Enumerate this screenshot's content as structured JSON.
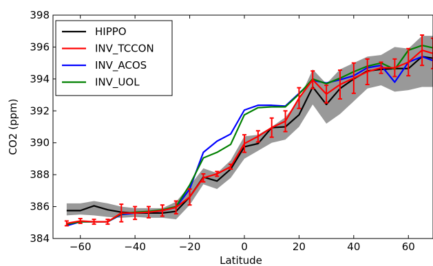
{
  "chart_data": {
    "type": "line",
    "title": "",
    "xlabel": "Latitude",
    "ylabel": "CO2 (ppm)",
    "xlim": [
      -70,
      69
    ],
    "ylim": [
      384,
      398
    ],
    "xticks": [
      -60,
      -40,
      -20,
      0,
      20,
      40,
      60
    ],
    "yticks": [
      384,
      386,
      388,
      390,
      392,
      394,
      396,
      398
    ],
    "grid": false,
    "legend": "top-left",
    "x": [
      -65,
      -60,
      -55,
      -50,
      -45,
      -40,
      -35,
      -30,
      -25,
      -20,
      -15,
      -10,
      -5,
      0,
      5,
      10,
      15,
      20,
      25,
      30,
      35,
      40,
      45,
      50,
      55,
      60,
      65,
      69
    ],
    "band": {
      "lower": [
        385.45,
        385.5,
        385.45,
        385.35,
        385.3,
        385.35,
        385.3,
        385.3,
        385.2,
        386.1,
        387.4,
        387.1,
        387.8,
        389.0,
        389.5,
        390.0,
        390.2,
        391.0,
        392.4,
        391.2,
        391.8,
        392.6,
        393.4,
        393.6,
        393.2,
        393.3,
        393.5,
        393.5
      ],
      "upper": [
        386.2,
        386.2,
        386.35,
        386.2,
        386.0,
        385.9,
        385.9,
        385.9,
        386.3,
        387.3,
        388.4,
        388.1,
        388.9,
        390.4,
        390.5,
        391.0,
        391.6,
        392.7,
        394.6,
        393.7,
        394.6,
        395.0,
        395.4,
        395.5,
        396.0,
        395.9,
        396.7,
        396.7
      ]
    },
    "series": [
      {
        "name": "HIPPO",
        "color": "#000000",
        "values": [
          385.75,
          385.75,
          386.05,
          385.8,
          385.65,
          385.6,
          385.6,
          385.6,
          385.7,
          386.6,
          387.85,
          387.6,
          388.35,
          389.75,
          389.95,
          390.95,
          391.0,
          391.75,
          393.5,
          392.4,
          393.4,
          394.0,
          394.5,
          394.6,
          394.65,
          394.65,
          395.4,
          395.3
        ]
      },
      {
        "name": "INV_TCCON",
        "color": "#ff0000",
        "values": [
          384.95,
          385.1,
          385.05,
          385.05,
          385.6,
          385.6,
          385.65,
          385.75,
          385.95,
          386.6,
          387.8,
          388.05,
          388.5,
          389.95,
          390.4,
          390.95,
          391.35,
          392.8,
          393.95,
          393.05,
          393.65,
          394.05,
          394.45,
          394.7,
          394.7,
          395.05,
          395.8,
          395.6
        ]
      },
      {
        "name": "INV_ACOS",
        "color": "#0000ff",
        "values": [
          384.8,
          385.05,
          385.05,
          385.05,
          385.5,
          385.6,
          385.65,
          385.75,
          385.95,
          387.1,
          389.4,
          390.1,
          390.55,
          392.05,
          392.35,
          392.35,
          392.3,
          393.1,
          393.9,
          393.75,
          393.95,
          394.2,
          394.7,
          394.85,
          393.8,
          395.05,
          395.4,
          395.15
        ]
      },
      {
        "name": "INV_UOL",
        "color": "#008000",
        "values": [
          384.9,
          385.05,
          385.05,
          385.05,
          385.55,
          385.65,
          385.7,
          385.8,
          386.0,
          387.35,
          389.05,
          389.4,
          389.9,
          391.75,
          392.2,
          392.25,
          392.25,
          393.05,
          394.0,
          393.7,
          394.05,
          394.45,
          394.8,
          395.0,
          394.6,
          395.8,
          396.1,
          395.95
        ]
      }
    ],
    "errorbars": {
      "series": "INV_TCCON",
      "color": "#ff0000",
      "half_width": [
        0.15,
        0.15,
        0.15,
        0.15,
        0.55,
        0.4,
        0.35,
        0.35,
        0.4,
        0.5,
        0.25,
        0.15,
        0.15,
        0.55,
        0.35,
        0.6,
        0.65,
        0.65,
        0.55,
        0.55,
        0.9,
        0.95,
        0.8,
        0.35,
        0.55,
        0.85,
        0.95,
        0.95
      ]
    }
  }
}
